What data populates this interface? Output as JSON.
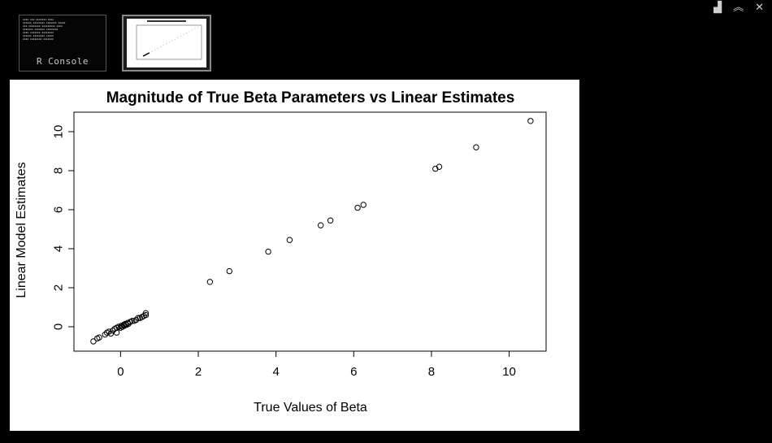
{
  "window_controls": {
    "restore_icon": "restore-icon",
    "collapse_icon": "collapse-icon",
    "close_icon": "close-icon",
    "restore_glyph": "▟",
    "collapse_glyph": "︽",
    "close_glyph": "✕"
  },
  "thumbnails": [
    {
      "label": "R Console"
    },
    {
      "label": ""
    }
  ],
  "chart_data": {
    "type": "scatter",
    "title": "Magnitude of True Beta Parameters vs Linear Estimates",
    "xlabel": "True Values of Beta",
    "ylabel": "Linear Model Estimates",
    "xlim": [
      -1.2,
      10.95
    ],
    "ylim": [
      -1.25,
      11.0
    ],
    "xticks": [
      0,
      2,
      4,
      6,
      8,
      10
    ],
    "yticks": [
      0,
      2,
      4,
      6,
      8,
      10
    ],
    "grid": false,
    "marker": "open-circle",
    "points": [
      [
        -0.7,
        -0.75
      ],
      [
        -0.6,
        -0.6
      ],
      [
        -0.55,
        -0.55
      ],
      [
        -0.4,
        -0.4
      ],
      [
        -0.35,
        -0.3
      ],
      [
        -0.3,
        -0.25
      ],
      [
        -0.25,
        -0.35
      ],
      [
        -0.2,
        -0.2
      ],
      [
        -0.15,
        -0.1
      ],
      [
        -0.1,
        -0.3
      ],
      [
        -0.1,
        -0.05
      ],
      [
        -0.05,
        0.0
      ],
      [
        0.0,
        -0.05
      ],
      [
        0.02,
        0.05
      ],
      [
        0.05,
        0.0
      ],
      [
        0.08,
        0.1
      ],
      [
        0.1,
        0.05
      ],
      [
        0.12,
        0.15
      ],
      [
        0.15,
        0.1
      ],
      [
        0.18,
        0.2
      ],
      [
        0.2,
        0.15
      ],
      [
        0.25,
        0.25
      ],
      [
        0.3,
        0.3
      ],
      [
        0.35,
        0.3
      ],
      [
        0.4,
        0.35
      ],
      [
        0.45,
        0.45
      ],
      [
        0.5,
        0.45
      ],
      [
        0.55,
        0.5
      ],
      [
        0.6,
        0.55
      ],
      [
        0.65,
        0.6
      ],
      [
        0.65,
        0.7
      ],
      [
        2.3,
        2.3
      ],
      [
        2.8,
        2.85
      ],
      [
        3.8,
        3.85
      ],
      [
        4.35,
        4.45
      ],
      [
        5.15,
        5.2
      ],
      [
        5.4,
        5.45
      ],
      [
        6.1,
        6.1
      ],
      [
        6.25,
        6.25
      ],
      [
        8.1,
        8.1
      ],
      [
        8.2,
        8.2
      ],
      [
        9.15,
        9.2
      ],
      [
        10.55,
        10.55
      ]
    ]
  }
}
